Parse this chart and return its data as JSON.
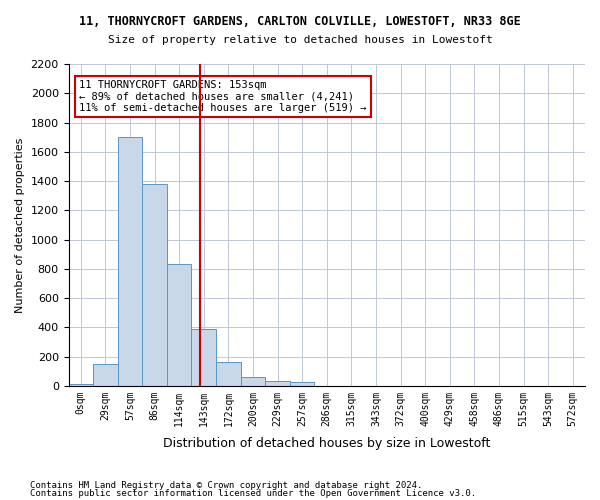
{
  "title1": "11, THORNYCROFT GARDENS, CARLTON COLVILLE, LOWESTOFT, NR33 8GE",
  "title2": "Size of property relative to detached houses in Lowestoft",
  "xlabel": "Distribution of detached houses by size in Lowestoft",
  "ylabel": "Number of detached properties",
  "bin_labels": [
    "0sqm",
    "29sqm",
    "57sqm",
    "86sqm",
    "114sqm",
    "143sqm",
    "172sqm",
    "200sqm",
    "229sqm",
    "257sqm",
    "286sqm",
    "315sqm",
    "343sqm",
    "372sqm",
    "400sqm",
    "429sqm",
    "458sqm",
    "486sqm",
    "515sqm",
    "543sqm",
    "572sqm"
  ],
  "bar_values": [
    15,
    150,
    1700,
    1380,
    830,
    390,
    160,
    60,
    30,
    25,
    0,
    0,
    0,
    0,
    0,
    0,
    0,
    0,
    0,
    0,
    0
  ],
  "bar_color": "#c8d8e8",
  "bar_edgecolor": "#5a96c8",
  "property_sqm": 153,
  "annotation_line1": "11 THORNYCROFT GARDENS: 153sqm",
  "annotation_line2": "← 89% of detached houses are smaller (4,241)",
  "annotation_line3": "11% of semi-detached houses are larger (519) →",
  "annotation_box_color": "#ffffff",
  "annotation_box_edgecolor": "#cc0000",
  "vline_color": "#cc0000",
  "ylim": [
    0,
    2200
  ],
  "yticks": [
    0,
    200,
    400,
    600,
    800,
    1000,
    1200,
    1400,
    1600,
    1800,
    2000,
    2200
  ],
  "footer1": "Contains HM Land Registry data © Crown copyright and database right 2024.",
  "footer2": "Contains public sector information licensed under the Open Government Licence v3.0.",
  "bg_color": "#ffffff",
  "grid_color": "#c0c8d8"
}
